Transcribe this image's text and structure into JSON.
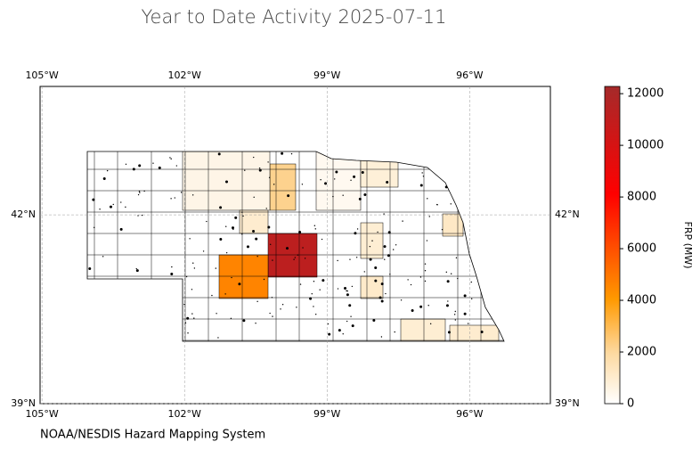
{
  "chart_data": {
    "type": "choropleth",
    "title": "Year to Date Activity 2025-07-11",
    "footer": "NOAA/NESDIS Hazard Mapping System",
    "colorbar_label": "FRP (MW)",
    "xlim": [
      -105.04,
      -94.3
    ],
    "ylim": [
      39,
      44.04
    ],
    "xticks": [
      {
        "value": -105,
        "label": "105°W"
      },
      {
        "value": -102,
        "label": "102°W"
      },
      {
        "value": -99,
        "label": "99°W"
      },
      {
        "value": -96,
        "label": "96°W"
      }
    ],
    "yticks": [
      {
        "value": 39,
        "label": "39°N"
      },
      {
        "value": 42,
        "label": "42°N"
      }
    ],
    "clim": [
      0,
      12280
    ],
    "cticks": [
      0,
      2000,
      4000,
      6000,
      8000,
      10000,
      12000
    ],
    "colorscale": [
      [
        0,
        "#ffffff"
      ],
      [
        0.16,
        "#fdd9a0"
      ],
      [
        0.33,
        "#ff9900"
      ],
      [
        0.66,
        "#ff0000"
      ],
      [
        1,
        "#a52a2a"
      ]
    ],
    "grid": true,
    "region_values": [
      11200,
      4600,
      2200,
      500,
      1000,
      300,
      800,
      1200,
      900,
      1000,
      900,
      1100
    ]
  }
}
